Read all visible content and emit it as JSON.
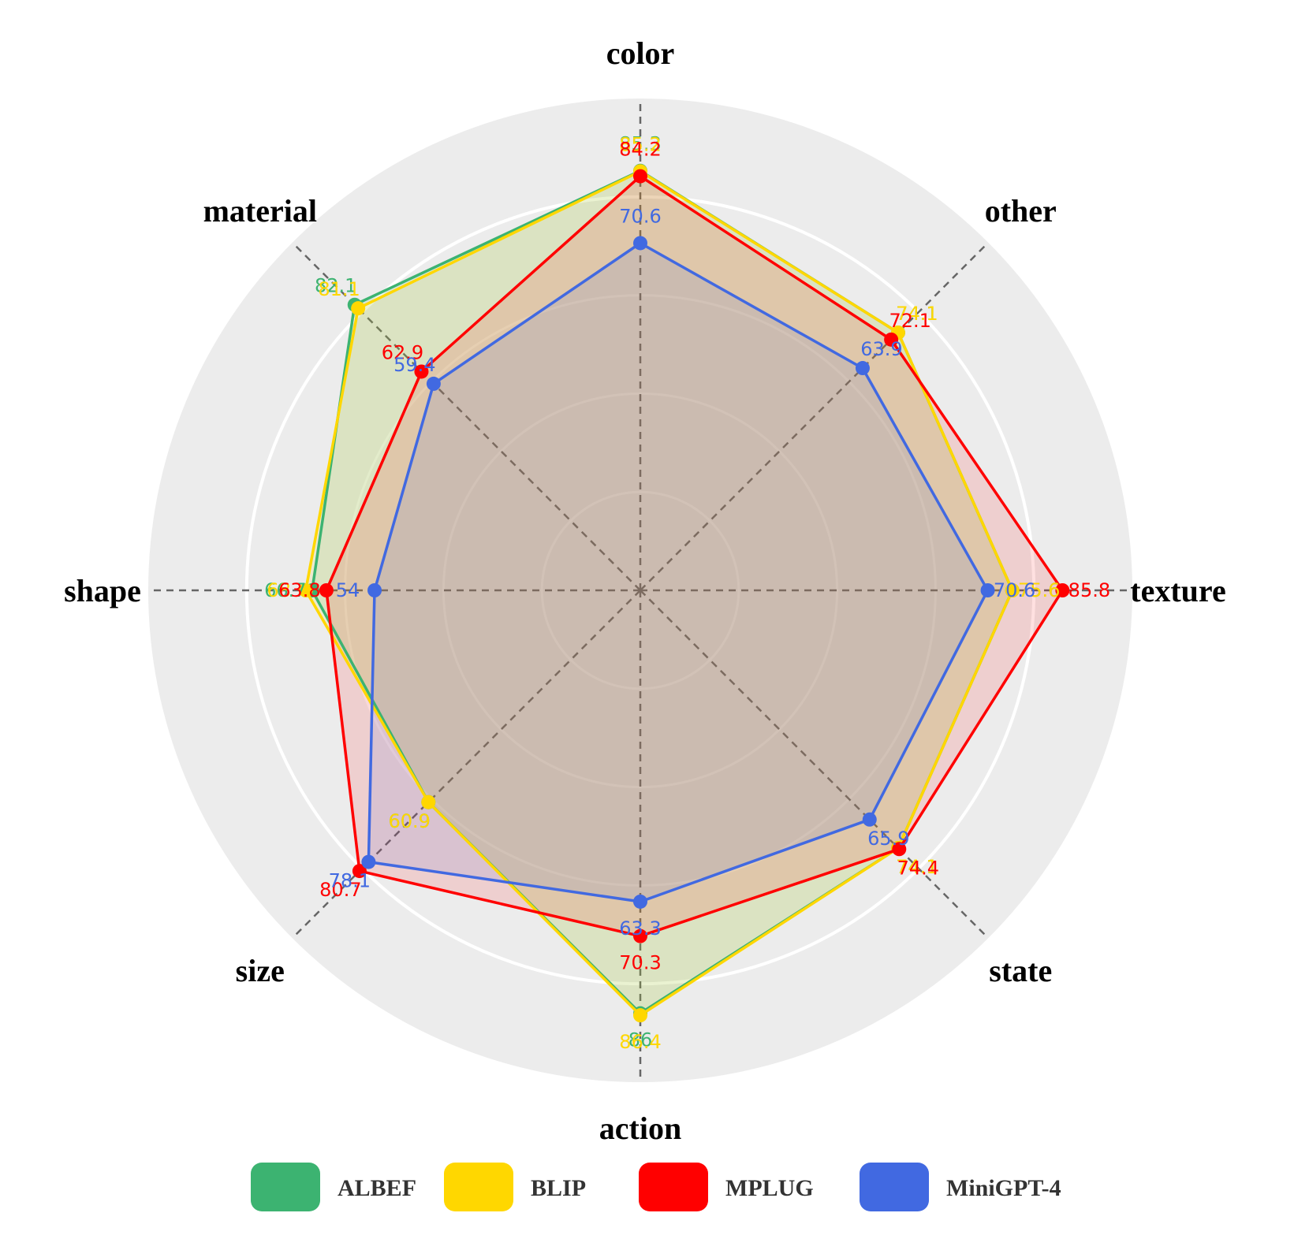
{
  "chart_data": {
    "type": "radar",
    "title": "",
    "axes": [
      "color",
      "other",
      "texture",
      "state",
      "action",
      "size",
      "shape",
      "material"
    ],
    "rlim": [
      0,
      100
    ],
    "grid": true,
    "legend_position": "bottom",
    "series": [
      {
        "name": "ALBEF",
        "color": "#3cb371",
        "values": [
          85.3,
          74.1,
          75.6,
          74.1,
          86,
          60.9,
          66.7,
          82.1
        ]
      },
      {
        "name": "BLIP",
        "color": "#ffd700",
        "values": [
          85.2,
          74.1,
          75.6,
          74.1,
          86.4,
          60.9,
          68,
          81.1
        ]
      },
      {
        "name": "MPLUG",
        "color": "#ff0000",
        "values": [
          84.2,
          72.1,
          85.8,
          74.4,
          70.3,
          80.7,
          63.8,
          62.9
        ]
      },
      {
        "name": "MiniGPT-4",
        "color": "#4169e1",
        "values": [
          70.6,
          63.9,
          70.6,
          65.9,
          63.3,
          78.1,
          54,
          59.4
        ]
      }
    ]
  }
}
